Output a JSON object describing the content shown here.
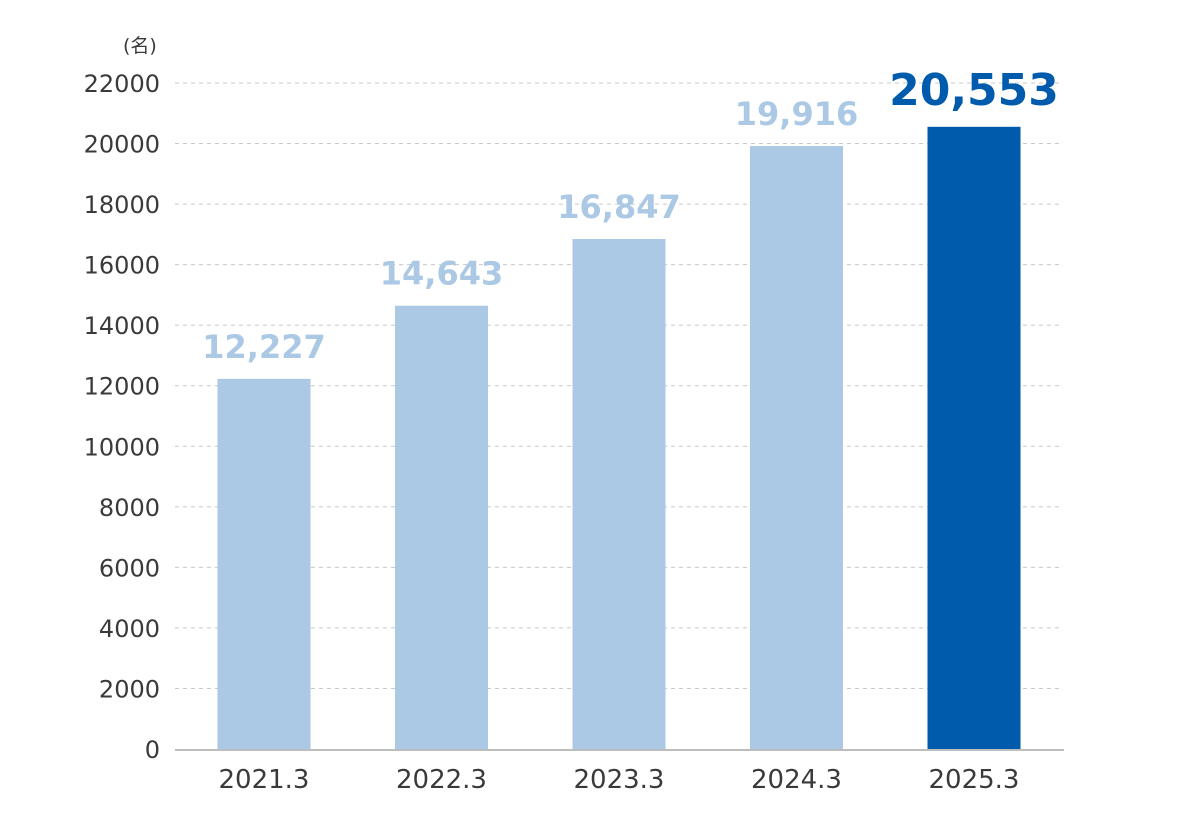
{
  "chart_data": {
    "type": "bar",
    "unit_label": "(名)",
    "categories": [
      "2021.3",
      "2022.3",
      "2023.3",
      "2024.3",
      "2025.3"
    ],
    "values": [
      12227,
      14643,
      16847,
      19916,
      20553
    ],
    "value_labels": [
      "12,227",
      "14,643",
      "16,847",
      "19,916",
      "20,553"
    ],
    "highlight_index": 4,
    "ylim": [
      0,
      22000
    ],
    "yticks": [
      0,
      2000,
      4000,
      6000,
      8000,
      10000,
      12000,
      14000,
      16000,
      18000,
      20000,
      22000
    ],
    "ytick_labels": [
      "0",
      "2000",
      "4000",
      "6000",
      "8000",
      "10000",
      "12000",
      "14000",
      "16000",
      "18000",
      "20000",
      "22000"
    ],
    "grid": "horizontal-dashed",
    "legend": "none",
    "colors": {
      "bar": "#abc8e4",
      "bar_highlight": "#005bac",
      "label": "#abc8e4",
      "label_highlight": "#005bac",
      "grid": "#c8c8c8",
      "axis": "#bdbdbd",
      "text": "#3a3a3a"
    }
  }
}
